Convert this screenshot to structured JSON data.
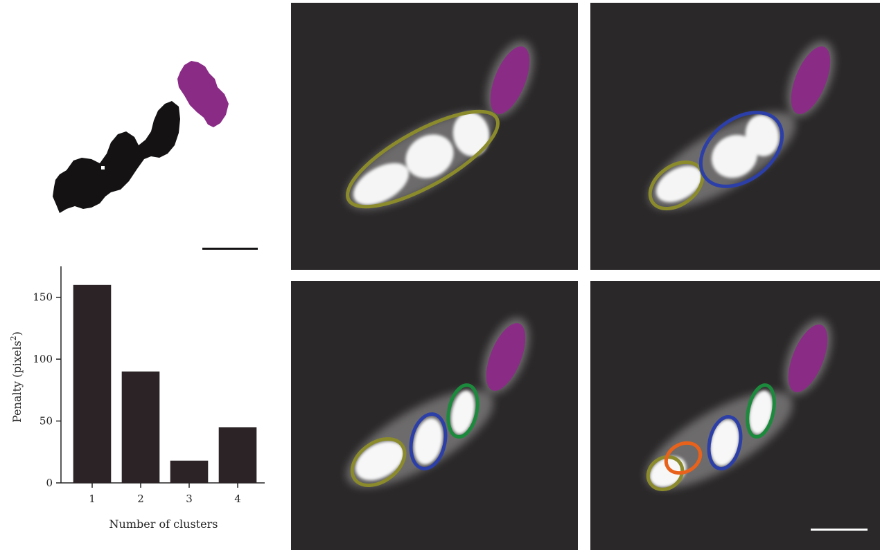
{
  "figure": {
    "colors": {
      "olive": "#8b8b2c",
      "blue": "#2c3fa8",
      "green": "#1c8a3c",
      "orange": "#e8621c",
      "purple": "#8a2b86",
      "bar": "#2b2325",
      "panel_bg": "#2a2828"
    },
    "panels": [
      {
        "name": "one-cluster",
        "ellipses": [
          "olive"
        ]
      },
      {
        "name": "two-clusters",
        "ellipses": [
          "olive",
          "blue"
        ]
      },
      {
        "name": "three-clusters",
        "ellipses": [
          "olive",
          "blue",
          "green"
        ]
      },
      {
        "name": "four-clusters",
        "ellipses": [
          "orange",
          "olive",
          "blue",
          "green"
        ]
      }
    ]
  },
  "chart_data": {
    "type": "bar",
    "categories": [
      "1",
      "2",
      "3",
      "4"
    ],
    "values": [
      160,
      90,
      18,
      45
    ],
    "xlabel": "Number of clusters",
    "ylabel": "Penalty (pixels",
    "ylabel_sup": "2",
    "ylabel_close": ")",
    "yticks": [
      0,
      50,
      100,
      150
    ],
    "ylim": [
      0,
      175
    ],
    "grid": false
  }
}
